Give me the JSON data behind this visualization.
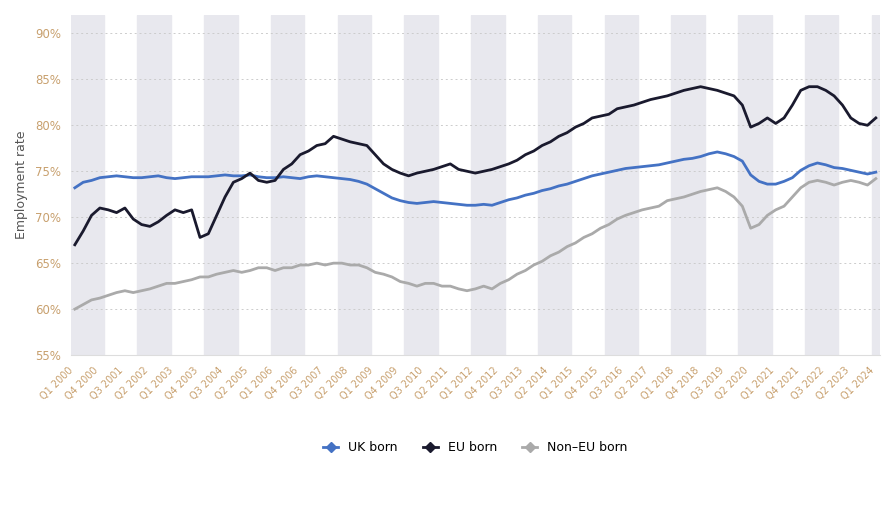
{
  "title": "",
  "ylabel": "Employment rate",
  "ylim": [
    55,
    92
  ],
  "yticks": [
    55,
    60,
    65,
    70,
    75,
    80,
    85,
    90
  ],
  "background_color": "#ffffff",
  "plot_bg_color": "#ffffff",
  "band_color": "#e8e8ee",
  "grid_color": "#cccccc",
  "uk_born_color": "#4472c4",
  "eu_born_color": "#1a1a2e",
  "non_eu_born_color": "#aaaaaa",
  "tick_label_color": "#c8a06e",
  "legend_labels": [
    "UK born",
    "EU born",
    "Non–EU born"
  ],
  "uk_born": [
    73.2,
    73.8,
    74.0,
    74.3,
    74.4,
    74.5,
    74.4,
    74.3,
    74.3,
    74.4,
    74.5,
    74.3,
    74.2,
    74.3,
    74.4,
    74.4,
    74.4,
    74.5,
    74.6,
    74.5,
    74.5,
    74.6,
    74.4,
    74.3,
    74.3,
    74.4,
    74.3,
    74.2,
    74.4,
    74.5,
    74.4,
    74.3,
    74.2,
    74.1,
    73.9,
    73.6,
    73.1,
    72.6,
    72.1,
    71.8,
    71.6,
    71.5,
    71.6,
    71.7,
    71.6,
    71.5,
    71.4,
    71.3,
    71.3,
    71.4,
    71.3,
    71.6,
    71.9,
    72.1,
    72.4,
    72.6,
    72.9,
    73.1,
    73.4,
    73.6,
    73.9,
    74.2,
    74.5,
    74.7,
    74.9,
    75.1,
    75.3,
    75.4,
    75.5,
    75.6,
    75.7,
    75.9,
    76.1,
    76.3,
    76.4,
    76.6,
    76.9,
    77.1,
    76.9,
    76.6,
    76.1,
    74.6,
    73.9,
    73.6,
    73.6,
    73.9,
    74.3,
    75.1,
    75.6,
    75.9,
    75.7,
    75.4,
    75.3,
    75.1,
    74.9,
    74.7,
    74.9
  ],
  "eu_born": [
    67.0,
    68.5,
    70.2,
    71.0,
    70.8,
    70.5,
    71.0,
    69.8,
    69.2,
    69.0,
    69.5,
    70.2,
    70.8,
    70.5,
    70.8,
    67.8,
    68.2,
    70.2,
    72.2,
    73.8,
    74.2,
    74.8,
    74.0,
    73.8,
    74.0,
    75.2,
    75.8,
    76.8,
    77.2,
    77.8,
    78.0,
    78.8,
    78.5,
    78.2,
    78.0,
    77.8,
    76.8,
    75.8,
    75.2,
    74.8,
    74.5,
    74.8,
    75.0,
    75.2,
    75.5,
    75.8,
    75.2,
    75.0,
    74.8,
    75.0,
    75.2,
    75.5,
    75.8,
    76.2,
    76.8,
    77.2,
    77.8,
    78.2,
    78.8,
    79.2,
    79.8,
    80.2,
    80.8,
    81.0,
    81.2,
    81.8,
    82.0,
    82.2,
    82.5,
    82.8,
    83.0,
    83.2,
    83.5,
    83.8,
    84.0,
    84.2,
    84.0,
    83.8,
    83.5,
    83.2,
    82.2,
    79.8,
    80.2,
    80.8,
    80.2,
    80.8,
    82.2,
    83.8,
    84.2,
    84.2,
    83.8,
    83.2,
    82.2,
    80.8,
    80.2,
    80.0,
    80.8
  ],
  "non_eu_born": [
    60.0,
    60.5,
    61.0,
    61.2,
    61.5,
    61.8,
    62.0,
    61.8,
    62.0,
    62.2,
    62.5,
    62.8,
    62.8,
    63.0,
    63.2,
    63.5,
    63.5,
    63.8,
    64.0,
    64.2,
    64.0,
    64.2,
    64.5,
    64.5,
    64.2,
    64.5,
    64.5,
    64.8,
    64.8,
    65.0,
    64.8,
    65.0,
    65.0,
    64.8,
    64.8,
    64.5,
    64.0,
    63.8,
    63.5,
    63.0,
    62.8,
    62.5,
    62.8,
    62.8,
    62.5,
    62.5,
    62.2,
    62.0,
    62.2,
    62.5,
    62.2,
    62.8,
    63.2,
    63.8,
    64.2,
    64.8,
    65.2,
    65.8,
    66.2,
    66.8,
    67.2,
    67.8,
    68.2,
    68.8,
    69.2,
    69.8,
    70.2,
    70.5,
    70.8,
    71.0,
    71.2,
    71.8,
    72.0,
    72.2,
    72.5,
    72.8,
    73.0,
    73.2,
    72.8,
    72.2,
    71.2,
    68.8,
    69.2,
    70.2,
    70.8,
    71.2,
    72.2,
    73.2,
    73.8,
    74.0,
    73.8,
    73.5,
    73.8,
    74.0,
    73.8,
    73.5,
    74.2
  ],
  "xtick_labels": [
    "Q1 2000",
    "Q4 2000",
    "Q3 2001",
    "Q2 2002",
    "Q1 2003",
    "Q4 2003",
    "Q3 2004",
    "Q2 2005",
    "Q1 2006",
    "Q4 2006",
    "Q3 2007",
    "Q2 2008",
    "Q1 2009",
    "Q4 2009",
    "Q3 2010",
    "Q2 2011",
    "Q1 2012",
    "Q4 2012",
    "Q3 2013",
    "Q2 2014",
    "Q1 2015",
    "Q4 2015",
    "Q3 2016",
    "Q2 2017",
    "Q1 2018"
  ]
}
